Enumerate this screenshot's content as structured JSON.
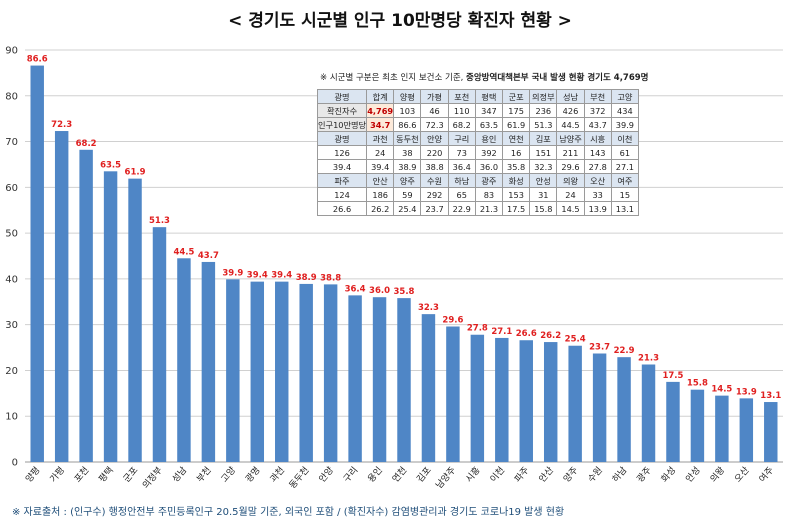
{
  "title": "< 경기도 시군별 인구 10만명당 확진자 현황 >",
  "chart_data": {
    "type": "bar",
    "categories": [
      "양평",
      "가평",
      "포천",
      "평택",
      "군포",
      "의정부",
      "성남",
      "부천",
      "고양",
      "광명",
      "과천",
      "동두천",
      "안양",
      "구리",
      "용인",
      "연천",
      "김포",
      "남양주",
      "시흥",
      "이천",
      "파주",
      "안산",
      "양주",
      "수원",
      "하남",
      "광주",
      "화성",
      "안성",
      "의왕",
      "오산",
      "여주"
    ],
    "values": [
      86.6,
      72.3,
      68.2,
      63.5,
      61.9,
      51.3,
      44.5,
      43.7,
      39.9,
      39.4,
      39.4,
      38.9,
      38.8,
      36.4,
      36.0,
      35.8,
      32.3,
      29.6,
      27.8,
      27.1,
      26.6,
      26.2,
      25.4,
      23.7,
      22.9,
      21.3,
      17.5,
      15.8,
      14.5,
      13.9,
      13.1
    ],
    "value_labels": [
      "86.6",
      "72.3",
      "68.2",
      "63.5",
      "61.9",
      "51.3",
      "44.5",
      "43.7",
      "39.9",
      "39.4",
      "39.4",
      "38.9",
      "38.8",
      "36.4",
      "36.0",
      "35.8",
      "32.3",
      "29.6",
      "27.8",
      "27.1",
      "26.6",
      "26.2",
      "25.4",
      "23.7",
      "22.9",
      "21.3",
      "17.5",
      "15.8",
      "14.5",
      "13.9",
      "13.1"
    ],
    "ylim": [
      0,
      90
    ],
    "yticks": [
      "0",
      "10",
      "20",
      "30",
      "40",
      "50",
      "60",
      "70",
      "80",
      "90"
    ],
    "grid": true,
    "bar_color": "#4f86c6",
    "label_color": "#e02020"
  },
  "note": {
    "prefix": "※ 시군별 구분은 최초 인지 보건소 기준,",
    "bold": "중앙방역대책본부 국내 발생 현황 경기도 4,769명"
  },
  "table": {
    "rows": [
      [
        "양평",
        "가평",
        "포천",
        "평택",
        "군포",
        "의정부",
        "성남",
        "부천",
        "고양"
      ],
      [
        "103",
        "46",
        "110",
        "347",
        "175",
        "236",
        "426",
        "372",
        "434"
      ],
      [
        "86.6",
        "72.3",
        "68.2",
        "63.5",
        "61.9",
        "51.3",
        "44.5",
        "43.7",
        "39.9"
      ],
      [
        "광명",
        "과천",
        "동두천",
        "안양",
        "구리",
        "용인",
        "연천",
        "김포",
        "남양주",
        "시흥",
        "이천"
      ],
      [
        "126",
        "24",
        "38",
        "220",
        "73",
        "392",
        "16",
        "151",
        "211",
        "143",
        "61"
      ],
      [
        "39.4",
        "39.4",
        "38.9",
        "38.8",
        "36.4",
        "36.0",
        "35.8",
        "32.3",
        "29.6",
        "27.8",
        "27.1"
      ],
      [
        "파주",
        "안산",
        "양주",
        "수원",
        "하남",
        "광주",
        "화성",
        "안성",
        "의왕",
        "오산",
        "여주"
      ],
      [
        "124",
        "186",
        "59",
        "292",
        "65",
        "83",
        "153",
        "31",
        "24",
        "33",
        "15"
      ],
      [
        "26.6",
        "26.2",
        "25.4",
        "23.7",
        "22.9",
        "21.3",
        "17.5",
        "15.8",
        "14.5",
        "13.9",
        "13.1"
      ]
    ],
    "row_labels": [
      "확진자수",
      "인구10만명당"
    ],
    "header_labels": [
      "광명",
      "합계"
    ],
    "total_cases": "4,769",
    "total_rate": "34.7"
  },
  "source": "※ 자료출처 : (인구수) 행정안전부 주민등록인구 20.5월말 기준, 외국인 포함 / (확진자수) 감염병관리과 경기도 코로나19 발생 현황"
}
